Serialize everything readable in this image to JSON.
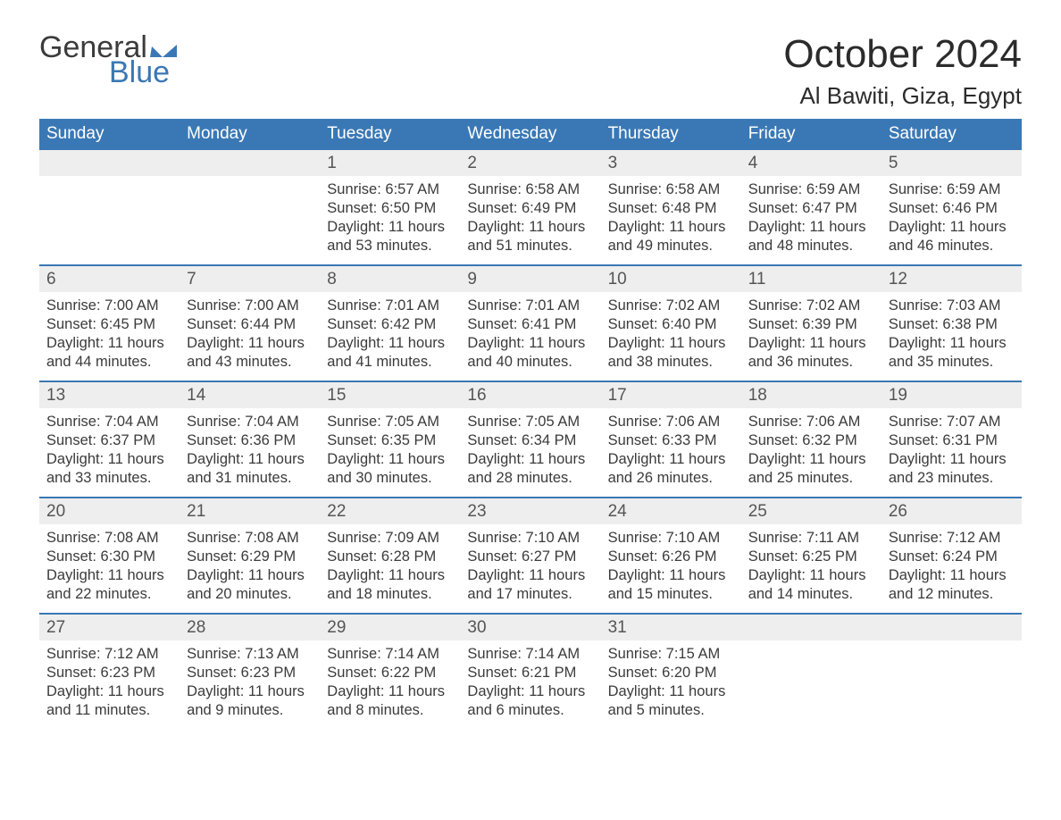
{
  "logo": {
    "general": "General",
    "blue": "Blue",
    "flag_color": "#3a78b5"
  },
  "header": {
    "month_title": "October 2024",
    "location": "Al Bawiti, Giza, Egypt"
  },
  "colors": {
    "header_bg": "#3a78b5",
    "header_text": "#ffffff",
    "daynum_bg": "#eeeeee",
    "body_text": "#3b3b3b",
    "week_border": "#3a78b5",
    "page_bg": "#ffffff"
  },
  "fonts": {
    "family": "Arial, Helvetica, sans-serif",
    "month_title_size": 44,
    "location_size": 26,
    "weekday_size": 19,
    "daynum_size": 19,
    "body_size": 16.5
  },
  "weekdays": [
    "Sunday",
    "Monday",
    "Tuesday",
    "Wednesday",
    "Thursday",
    "Friday",
    "Saturday"
  ],
  "labels": {
    "sunrise": "Sunrise:",
    "sunset": "Sunset:",
    "daylight": "Daylight:"
  },
  "weeks": [
    [
      {
        "empty": true
      },
      {
        "empty": true
      },
      {
        "day": "1",
        "sunrise": "6:57 AM",
        "sunset": "6:50 PM",
        "daylight": "11 hours and 53 minutes."
      },
      {
        "day": "2",
        "sunrise": "6:58 AM",
        "sunset": "6:49 PM",
        "daylight": "11 hours and 51 minutes."
      },
      {
        "day": "3",
        "sunrise": "6:58 AM",
        "sunset": "6:48 PM",
        "daylight": "11 hours and 49 minutes."
      },
      {
        "day": "4",
        "sunrise": "6:59 AM",
        "sunset": "6:47 PM",
        "daylight": "11 hours and 48 minutes."
      },
      {
        "day": "5",
        "sunrise": "6:59 AM",
        "sunset": "6:46 PM",
        "daylight": "11 hours and 46 minutes."
      }
    ],
    [
      {
        "day": "6",
        "sunrise": "7:00 AM",
        "sunset": "6:45 PM",
        "daylight": "11 hours and 44 minutes."
      },
      {
        "day": "7",
        "sunrise": "7:00 AM",
        "sunset": "6:44 PM",
        "daylight": "11 hours and 43 minutes."
      },
      {
        "day": "8",
        "sunrise": "7:01 AM",
        "sunset": "6:42 PM",
        "daylight": "11 hours and 41 minutes."
      },
      {
        "day": "9",
        "sunrise": "7:01 AM",
        "sunset": "6:41 PM",
        "daylight": "11 hours and 40 minutes."
      },
      {
        "day": "10",
        "sunrise": "7:02 AM",
        "sunset": "6:40 PM",
        "daylight": "11 hours and 38 minutes."
      },
      {
        "day": "11",
        "sunrise": "7:02 AM",
        "sunset": "6:39 PM",
        "daylight": "11 hours and 36 minutes."
      },
      {
        "day": "12",
        "sunrise": "7:03 AM",
        "sunset": "6:38 PM",
        "daylight": "11 hours and 35 minutes."
      }
    ],
    [
      {
        "day": "13",
        "sunrise": "7:04 AM",
        "sunset": "6:37 PM",
        "daylight": "11 hours and 33 minutes."
      },
      {
        "day": "14",
        "sunrise": "7:04 AM",
        "sunset": "6:36 PM",
        "daylight": "11 hours and 31 minutes."
      },
      {
        "day": "15",
        "sunrise": "7:05 AM",
        "sunset": "6:35 PM",
        "daylight": "11 hours and 30 minutes."
      },
      {
        "day": "16",
        "sunrise": "7:05 AM",
        "sunset": "6:34 PM",
        "daylight": "11 hours and 28 minutes."
      },
      {
        "day": "17",
        "sunrise": "7:06 AM",
        "sunset": "6:33 PM",
        "daylight": "11 hours and 26 minutes."
      },
      {
        "day": "18",
        "sunrise": "7:06 AM",
        "sunset": "6:32 PM",
        "daylight": "11 hours and 25 minutes."
      },
      {
        "day": "19",
        "sunrise": "7:07 AM",
        "sunset": "6:31 PM",
        "daylight": "11 hours and 23 minutes."
      }
    ],
    [
      {
        "day": "20",
        "sunrise": "7:08 AM",
        "sunset": "6:30 PM",
        "daylight": "11 hours and 22 minutes."
      },
      {
        "day": "21",
        "sunrise": "7:08 AM",
        "sunset": "6:29 PM",
        "daylight": "11 hours and 20 minutes."
      },
      {
        "day": "22",
        "sunrise": "7:09 AM",
        "sunset": "6:28 PM",
        "daylight": "11 hours and 18 minutes."
      },
      {
        "day": "23",
        "sunrise": "7:10 AM",
        "sunset": "6:27 PM",
        "daylight": "11 hours and 17 minutes."
      },
      {
        "day": "24",
        "sunrise": "7:10 AM",
        "sunset": "6:26 PM",
        "daylight": "11 hours and 15 minutes."
      },
      {
        "day": "25",
        "sunrise": "7:11 AM",
        "sunset": "6:25 PM",
        "daylight": "11 hours and 14 minutes."
      },
      {
        "day": "26",
        "sunrise": "7:12 AM",
        "sunset": "6:24 PM",
        "daylight": "11 hours and 12 minutes."
      }
    ],
    [
      {
        "day": "27",
        "sunrise": "7:12 AM",
        "sunset": "6:23 PM",
        "daylight": "11 hours and 11 minutes."
      },
      {
        "day": "28",
        "sunrise": "7:13 AM",
        "sunset": "6:23 PM",
        "daylight": "11 hours and 9 minutes."
      },
      {
        "day": "29",
        "sunrise": "7:14 AM",
        "sunset": "6:22 PM",
        "daylight": "11 hours and 8 minutes."
      },
      {
        "day": "30",
        "sunrise": "7:14 AM",
        "sunset": "6:21 PM",
        "daylight": "11 hours and 6 minutes."
      },
      {
        "day": "31",
        "sunrise": "7:15 AM",
        "sunset": "6:20 PM",
        "daylight": "11 hours and 5 minutes."
      },
      {
        "empty": true
      },
      {
        "empty": true
      }
    ]
  ]
}
